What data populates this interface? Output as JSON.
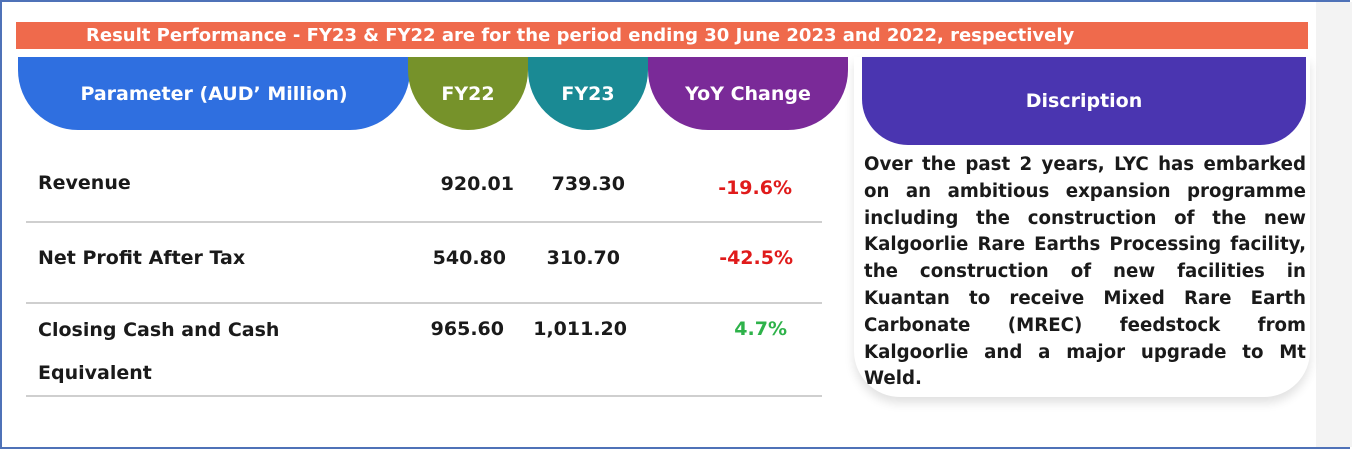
{
  "banner": "Result Performance - FY23 & FY22 are for the period ending 30 June 2023 and 2022, respectively",
  "headers": {
    "parameter": "Parameter (AUD’ Million)",
    "fy22": "FY22",
    "fy23": "FY23",
    "yoy": "YoY Change",
    "description": "Discription"
  },
  "rows": [
    {
      "label": "Revenue",
      "fy22": "920.01",
      "fy23": "739.30",
      "yoy": "-19.6%"
    },
    {
      "label": "Net Profit After Tax",
      "fy22": "540.80",
      "fy23": "310.70",
      "yoy": "-42.5%"
    },
    {
      "label_line1": "Closing Cash and Cash",
      "label_line2": "Equivalent",
      "fy22": "965.60",
      "fy23": "1,011.20",
      "yoy": "4.7%"
    }
  ],
  "description": "Over the past 2 years, LYC has embarked on an ambitious expansion programme including the construction of the new Kalgoorlie Rare Earths Processing facility, the construction of new facilities in Kuantan to receive Mixed Rare Earth Carbonate (MREC) feedstock from Kalgoorlie and a major upgrade to Mt Weld.",
  "colors": {
    "banner": "#ef6a4c",
    "parameter_header": "#2f6fe0",
    "fy22_header": "#76922a",
    "fy23_header": "#1a8a94",
    "yoy_header": "#7a2a98",
    "description_header": "#4a35b0",
    "negative": "#e01b1b",
    "positive": "#2eb24a"
  }
}
